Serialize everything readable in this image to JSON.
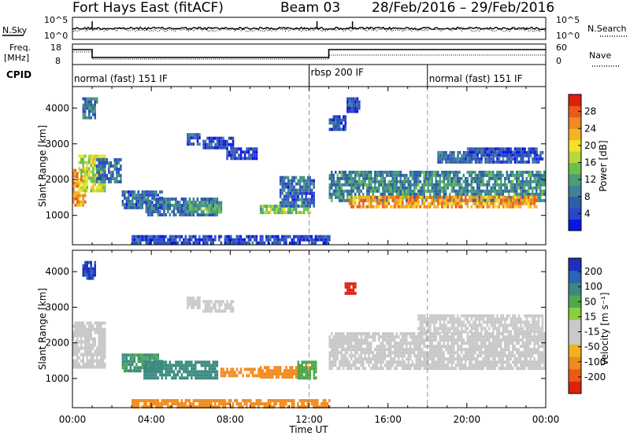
{
  "header": {
    "title": "Fort Hays East (fitACF)",
    "beam": "Beam 03",
    "date_range": "28/Feb/2016 – 29/Feb/2016"
  },
  "noise_panel": {
    "left_label": "N.Sky",
    "left_ticks": [
      "10^5",
      "10^0"
    ],
    "right_label": "N.Search",
    "right_ticks": [
      "10^5",
      "10^0"
    ]
  },
  "freq_panel": {
    "left_label_1": "Freq.",
    "left_label_2": "[MHz]",
    "left_ticks": [
      "18",
      "8"
    ],
    "right_label": "Nave",
    "right_ticks": [
      "60",
      "0"
    ]
  },
  "cpid": {
    "label": "CPID",
    "segments": [
      {
        "start_hour": 0,
        "text": "normal (fast) 151 IF"
      },
      {
        "start_hour": 12,
        "text": "rbsp 200 IF"
      },
      {
        "start_hour": 18,
        "text": "normal (fast) 151 IF"
      }
    ]
  },
  "chart_data": [
    {
      "type": "heatmap",
      "name": "power",
      "ylabel": "Slant Range [km]",
      "xlabel": "Time UT",
      "xlim_hours": [
        0,
        24
      ],
      "ylim": [
        180,
        4600
      ],
      "yticks": [
        1000,
        2000,
        3000,
        4000
      ],
      "xtick_labels": [
        "00:00",
        "04:00",
        "08:00",
        "12:00",
        "16:00",
        "20:00",
        "00:00"
      ],
      "colorbar": {
        "label": "Power [dB]",
        "ticks": [
          "4",
          "8",
          "12",
          "16",
          "20",
          "24",
          "28"
        ],
        "colors": [
          "#0a14e6",
          "#2a46c8",
          "#2f5fa8",
          "#3d8296",
          "#4a9e7a",
          "#6fbe50",
          "#b6d83a",
          "#f3e22a",
          "#f2b526",
          "#f08a22",
          "#ea5a1c",
          "#e0200f"
        ]
      },
      "regions": [
        {
          "t0": 0.0,
          "t1": 0.6,
          "r0": 1300,
          "r1": 2300,
          "level": 24
        },
        {
          "t0": 0.3,
          "t1": 1.6,
          "r0": 1700,
          "r1": 2700,
          "level": 18
        },
        {
          "t0": 0.5,
          "t1": 1.2,
          "r0": 3700,
          "r1": 4300,
          "level": 10
        },
        {
          "t0": 1.2,
          "t1": 2.4,
          "r0": 1900,
          "r1": 2600,
          "level": 9
        },
        {
          "t0": 2.5,
          "t1": 4.5,
          "r0": 1200,
          "r1": 1700,
          "level": 8
        },
        {
          "t0": 3.6,
          "t1": 7.3,
          "r0": 1000,
          "r1": 1500,
          "level": 9
        },
        {
          "t0": 5.9,
          "t1": 7.5,
          "r0": 1100,
          "r1": 1400,
          "level": 14
        },
        {
          "t0": 5.8,
          "t1": 6.4,
          "r0": 3000,
          "r1": 3300,
          "level": 7
        },
        {
          "t0": 6.6,
          "t1": 8.1,
          "r0": 2900,
          "r1": 3200,
          "level": 6
        },
        {
          "t0": 7.8,
          "t1": 9.3,
          "r0": 2600,
          "r1": 2900,
          "level": 6
        },
        {
          "t0": 9.5,
          "t1": 12.0,
          "r0": 1050,
          "r1": 1300,
          "level": 15
        },
        {
          "t0": 10.5,
          "t1": 12.2,
          "r0": 1300,
          "r1": 2100,
          "level": 8
        },
        {
          "t0": 13.0,
          "t1": 13.8,
          "r0": 3400,
          "r1": 3800,
          "level": 7
        },
        {
          "t0": 13.9,
          "t1": 14.5,
          "r0": 3900,
          "r1": 4300,
          "level": 6
        },
        {
          "t0": 13.0,
          "t1": 23.9,
          "r0": 1400,
          "r1": 2250,
          "level": 11
        },
        {
          "t0": 14.0,
          "t1": 23.5,
          "r0": 1200,
          "r1": 1550,
          "level": 24
        },
        {
          "t0": 18.5,
          "t1": 23.8,
          "r0": 2500,
          "r1": 2800,
          "level": 8
        },
        {
          "t0": 20.0,
          "t1": 23.5,
          "r0": 2700,
          "r1": 2900,
          "level": 6
        },
        {
          "t0": 3.0,
          "t1": 13.0,
          "r0": 200,
          "r1": 450,
          "level": 6
        }
      ]
    },
    {
      "type": "heatmap",
      "name": "velocity",
      "ylabel": "Slant Range [km]",
      "xlabel": "Time UT",
      "xlim_hours": [
        0,
        24
      ],
      "ylim": [
        180,
        4600
      ],
      "yticks": [
        1000,
        2000,
        3000,
        4000
      ],
      "xtick_labels": [
        "00:00",
        "04:00",
        "08:00",
        "12:00",
        "16:00",
        "20:00",
        "00:00"
      ],
      "colorbar": {
        "label": "Velocity [m s⁻¹]",
        "ticks": [
          "200",
          "100",
          "50",
          "15",
          "-15",
          "-50",
          "-100",
          "-200"
        ],
        "colors": [
          "#1d2fbf",
          "#2e63b8",
          "#3b8a80",
          "#4fa84c",
          "#8ccf3c",
          "#c9c9c9",
          "#c9c9c9",
          "#f2b21e",
          "#f08a1e",
          "#ea5a18",
          "#e0200f"
        ]
      },
      "regions": [
        {
          "t0": 0.0,
          "t1": 1.6,
          "r0": 1300,
          "r1": 2600,
          "level": 0
        },
        {
          "t0": 0.5,
          "t1": 1.1,
          "r0": 3800,
          "r1": 4300,
          "level": 150
        },
        {
          "t0": 2.5,
          "t1": 4.5,
          "r0": 1200,
          "r1": 1700,
          "level": 40
        },
        {
          "t0": 3.6,
          "t1": 7.3,
          "r0": 1000,
          "r1": 1500,
          "level": 45
        },
        {
          "t0": 5.8,
          "t1": 6.4,
          "r0": 3000,
          "r1": 3300,
          "level": 0
        },
        {
          "t0": 6.6,
          "t1": 8.1,
          "r0": 2900,
          "r1": 3200,
          "level": 0
        },
        {
          "t0": 7.5,
          "t1": 9.5,
          "r0": 1050,
          "r1": 1300,
          "level": -40
        },
        {
          "t0": 9.5,
          "t1": 12.0,
          "r0": 1050,
          "r1": 1350,
          "level": -40
        },
        {
          "t0": 11.4,
          "t1": 12.3,
          "r0": 1000,
          "r1": 1500,
          "level": 30
        },
        {
          "t0": 13.8,
          "t1": 14.3,
          "r0": 3400,
          "r1": 3700,
          "level": -250
        },
        {
          "t0": 13.0,
          "t1": 23.9,
          "r0": 1300,
          "r1": 2300,
          "level": 0
        },
        {
          "t0": 17.5,
          "t1": 23.8,
          "r0": 2300,
          "r1": 2800,
          "level": 0
        },
        {
          "t0": 3.0,
          "t1": 13.0,
          "r0": 200,
          "r1": 420,
          "level": -40
        }
      ]
    }
  ]
}
